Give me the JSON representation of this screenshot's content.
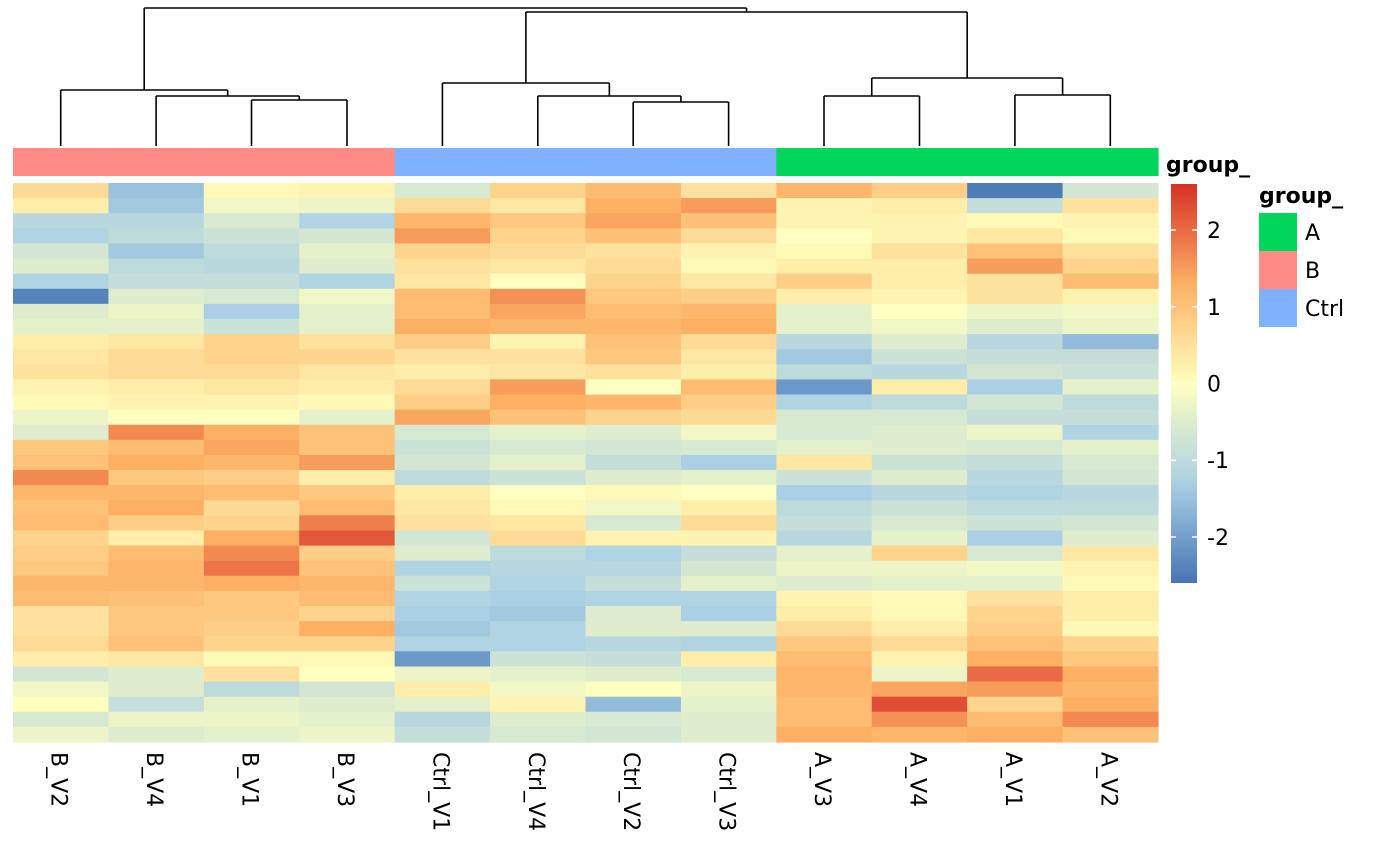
{
  "chart_data": {
    "type": "heatmap",
    "columns": [
      "B_V2",
      "B_V4",
      "B_V1",
      "B_V3",
      "Ctrl_V1",
      "Ctrl_V4",
      "Ctrl_V2",
      "Ctrl_V3",
      "A_V3",
      "A_V4",
      "A_V1",
      "A_V2"
    ],
    "column_groups": [
      "B",
      "B",
      "B",
      "B",
      "Ctrl",
      "Ctrl",
      "Ctrl",
      "Ctrl",
      "A",
      "A",
      "A",
      "A"
    ],
    "annotation_title": "group_",
    "legend": {
      "title": "group_",
      "items": [
        {
          "label": "A",
          "color": "#00D65C"
        },
        {
          "label": "B",
          "color": "#FF8C85"
        },
        {
          "label": "Ctrl",
          "color": "#80B1FF"
        }
      ]
    },
    "color_scale": {
      "ticks": [
        "2",
        "1",
        "0",
        "-1",
        "-2"
      ],
      "tick_values": [
        2,
        1,
        0,
        -1,
        -2
      ],
      "min": -2.6,
      "max": 2.6,
      "stops": [
        "#4575B4",
        "#ABD0E5",
        "#FFFFBF",
        "#FDB063",
        "#D73027"
      ]
    },
    "values": [
      [
        0.6,
        -1.5,
        0.1,
        0.2,
        -0.6,
        0.7,
        1.1,
        0.5,
        1.2,
        0.8,
        -2.5,
        -0.7
      ],
      [
        0.3,
        -1.4,
        -0.2,
        -0.3,
        0.6,
        0.4,
        1.3,
        1.5,
        0.2,
        0.3,
        -0.9,
        0.5
      ],
      [
        -1.1,
        -1.1,
        -0.6,
        -1.2,
        1.2,
        0.9,
        1.4,
        1.0,
        0.2,
        0.2,
        0.1,
        0.2
      ],
      [
        -1.2,
        -1.0,
        -0.8,
        -0.7,
        1.5,
        0.7,
        1.0,
        0.6,
        0.0,
        0.2,
        0.4,
        0.1
      ],
      [
        -0.7,
        -1.4,
        -1.0,
        -0.4,
        0.7,
        0.6,
        0.5,
        0.2,
        0.1,
        0.5,
        1.0,
        0.5
      ],
      [
        -0.5,
        -1.0,
        -1.1,
        -0.5,
        0.5,
        0.4,
        0.6,
        0.1,
        0.3,
        0.3,
        1.5,
        0.7
      ],
      [
        -1.2,
        -0.9,
        -0.9,
        -1.2,
        0.4,
        0.0,
        0.7,
        0.4,
        0.8,
        0.3,
        0.5,
        1.1
      ],
      [
        -2.4,
        -0.5,
        -0.6,
        -0.2,
        1.1,
        1.6,
        0.9,
        0.8,
        0.3,
        0.2,
        0.5,
        0.2
      ],
      [
        -0.5,
        -0.3,
        -1.3,
        -0.4,
        1.1,
        1.4,
        1.1,
        1.2,
        -0.4,
        0.0,
        -0.3,
        -0.2
      ],
      [
        -0.4,
        -0.4,
        -0.8,
        -0.4,
        1.3,
        1.2,
        1.2,
        1.3,
        -0.4,
        -0.2,
        -0.5,
        -0.3
      ],
      [
        0.3,
        0.4,
        0.7,
        0.5,
        0.8,
        0.2,
        1.0,
        0.6,
        -1.1,
        -0.5,
        -1.1,
        -1.6
      ],
      [
        0.4,
        0.6,
        0.7,
        0.7,
        0.5,
        0.5,
        0.9,
        0.4,
        -1.4,
        -0.8,
        -0.9,
        -0.9
      ],
      [
        0.5,
        0.6,
        0.6,
        0.4,
        0.3,
        0.4,
        0.5,
        0.3,
        -1.0,
        -1.1,
        -0.7,
        -0.8
      ],
      [
        0.2,
        0.3,
        0.4,
        0.3,
        0.6,
        1.5,
        0.0,
        1.1,
        -2.1,
        0.3,
        -1.3,
        -0.4
      ],
      [
        0.1,
        0.2,
        0.2,
        0.1,
        0.8,
        1.3,
        1.2,
        0.8,
        -1.2,
        -1.0,
        -0.7,
        -1.0
      ],
      [
        -0.3,
        0.0,
        0.0,
        -0.4,
        1.4,
        1.0,
        0.7,
        0.6,
        -0.6,
        -0.6,
        -0.9,
        -0.9
      ],
      [
        -0.5,
        1.7,
        1.3,
        1.0,
        -0.6,
        -0.4,
        -0.5,
        -0.2,
        -0.6,
        -0.5,
        -0.3,
        -1.2
      ],
      [
        0.9,
        1.1,
        1.4,
        1.0,
        -0.8,
        -0.6,
        -0.7,
        -0.6,
        -0.4,
        -0.5,
        -0.6,
        -0.4
      ],
      [
        1.0,
        1.3,
        1.2,
        1.5,
        -0.7,
        -0.4,
        -0.9,
        -1.3,
        0.4,
        -0.8,
        -0.9,
        -0.6
      ],
      [
        1.7,
        0.9,
        0.8,
        0.3,
        -1.0,
        -0.8,
        -0.5,
        -0.4,
        -0.8,
        -0.5,
        -1.1,
        -0.7
      ],
      [
        1.2,
        1.2,
        1.1,
        0.9,
        0.3,
        0.0,
        0.1,
        0.0,
        -1.3,
        -1.1,
        -1.2,
        -1.1
      ],
      [
        1.0,
        1.3,
        0.6,
        1.1,
        0.4,
        0.1,
        -0.2,
        0.3,
        -1.0,
        -0.8,
        -1.0,
        -1.0
      ],
      [
        1.1,
        0.8,
        0.7,
        1.8,
        0.5,
        0.4,
        -0.6,
        0.6,
        -0.9,
        -0.6,
        -0.8,
        -0.7
      ],
      [
        0.7,
        0.3,
        1.3,
        2.2,
        -0.7,
        0.6,
        0.2,
        0.2,
        -1.1,
        -0.4,
        -1.3,
        -0.5
      ],
      [
        0.8,
        1.1,
        1.7,
        0.8,
        -0.5,
        -1.0,
        -1.2,
        -0.9,
        -0.4,
        0.7,
        -0.6,
        0.4
      ],
      [
        0.9,
        1.2,
        1.9,
        1.0,
        -1.2,
        -1.1,
        -1.1,
        -0.7,
        -0.3,
        -0.3,
        -0.2,
        0.2
      ],
      [
        1.2,
        1.2,
        1.3,
        1.2,
        -0.8,
        -1.2,
        -0.9,
        -0.4,
        -0.5,
        -0.4,
        -0.4,
        0.1
      ],
      [
        1.1,
        1.0,
        0.9,
        1.1,
        -1.2,
        -1.3,
        -1.2,
        -1.2,
        0.2,
        0.1,
        0.5,
        0.3
      ],
      [
        0.5,
        0.9,
        0.9,
        0.7,
        -1.3,
        -1.4,
        -0.5,
        -1.3,
        0.3,
        0.1,
        0.7,
        0.3
      ],
      [
        0.5,
        0.9,
        0.8,
        1.3,
        -1.4,
        -1.2,
        -0.5,
        -0.5,
        0.6,
        0.3,
        0.8,
        0.1
      ],
      [
        0.6,
        1.0,
        0.7,
        0.7,
        -1.2,
        -1.2,
        -1.1,
        -1.2,
        0.9,
        0.6,
        1.0,
        0.7
      ],
      [
        0.3,
        0.4,
        0.1,
        0.1,
        -2.1,
        -0.8,
        -0.9,
        0.3,
        1.1,
        0.2,
        1.3,
        0.9
      ],
      [
        -0.7,
        -0.5,
        0.5,
        0.0,
        -0.3,
        -0.4,
        -0.5,
        -0.6,
        1.2,
        -0.3,
        2.0,
        1.3
      ],
      [
        -0.2,
        -0.5,
        -1.0,
        -0.7,
        0.3,
        -0.2,
        0.0,
        -0.3,
        1.2,
        1.4,
        1.5,
        1.2
      ],
      [
        0.0,
        -0.9,
        -0.4,
        -0.5,
        -0.4,
        0.2,
        -1.6,
        -0.4,
        1.1,
        2.3,
        0.7,
        1.3
      ],
      [
        -0.6,
        -0.3,
        -0.3,
        -0.4,
        -1.1,
        -0.5,
        -0.6,
        -0.5,
        1.1,
        1.6,
        1.1,
        1.7
      ],
      [
        -0.3,
        -0.5,
        -0.4,
        -0.3,
        -0.9,
        -0.6,
        -0.7,
        -0.5,
        1.3,
        1.2,
        1.3,
        1.0
      ]
    ]
  }
}
